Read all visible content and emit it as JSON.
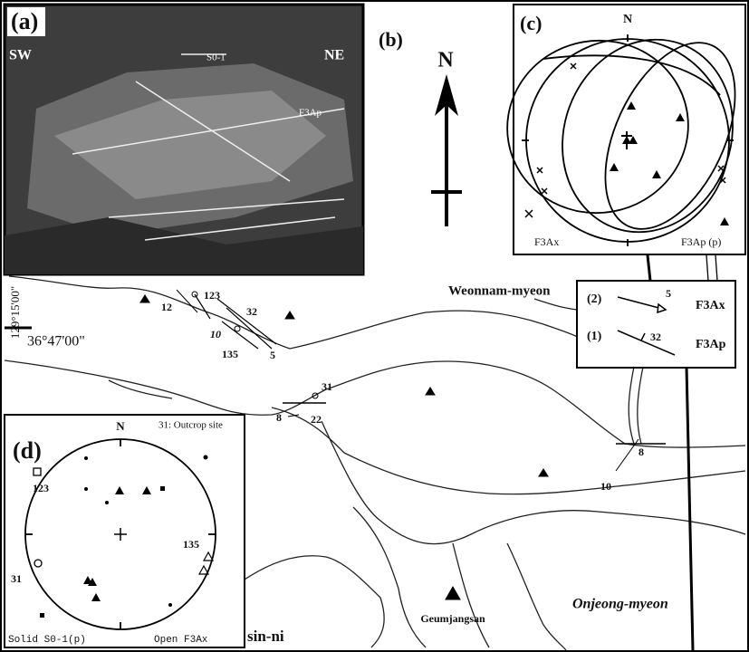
{
  "panel_a": {
    "label": "(a)",
    "sw": "SW",
    "ne": "NE",
    "bedding": "S0-1",
    "fold": "F3Ap"
  },
  "panel_b": {
    "label": "(b)",
    "north": "N"
  },
  "panel_c": {
    "label": "(c)",
    "north": "N",
    "legend_cross": "F3Ax",
    "legend_triangle": "F3Ap (p)"
  },
  "legend": {
    "item_2_number": "(2)",
    "item_2_dip": "5",
    "item_2_label": "F3Ax",
    "item_1_number": "(1)",
    "item_1_dip": "32",
    "item_1_label": "F3Ap"
  },
  "map": {
    "longitude": "129°15'00\"",
    "latitude": "36°47'00\"",
    "places": [
      "Weonnam-myeon",
      "Geumjangsan",
      "Onjeong-myeon",
      "sin-ni"
    ],
    "site_labels": [
      "12",
      "123",
      "32",
      "10",
      "135",
      "5",
      "31",
      "8",
      "22",
      "8",
      "10"
    ]
  },
  "panel_d": {
    "label": "(d)",
    "north": "N",
    "site_note": "31: Outcrop site",
    "sites": [
      "123",
      "135",
      "31"
    ],
    "legend_solid": "Solid S0-1(p)",
    "legend_open": "Open F3Ax"
  }
}
